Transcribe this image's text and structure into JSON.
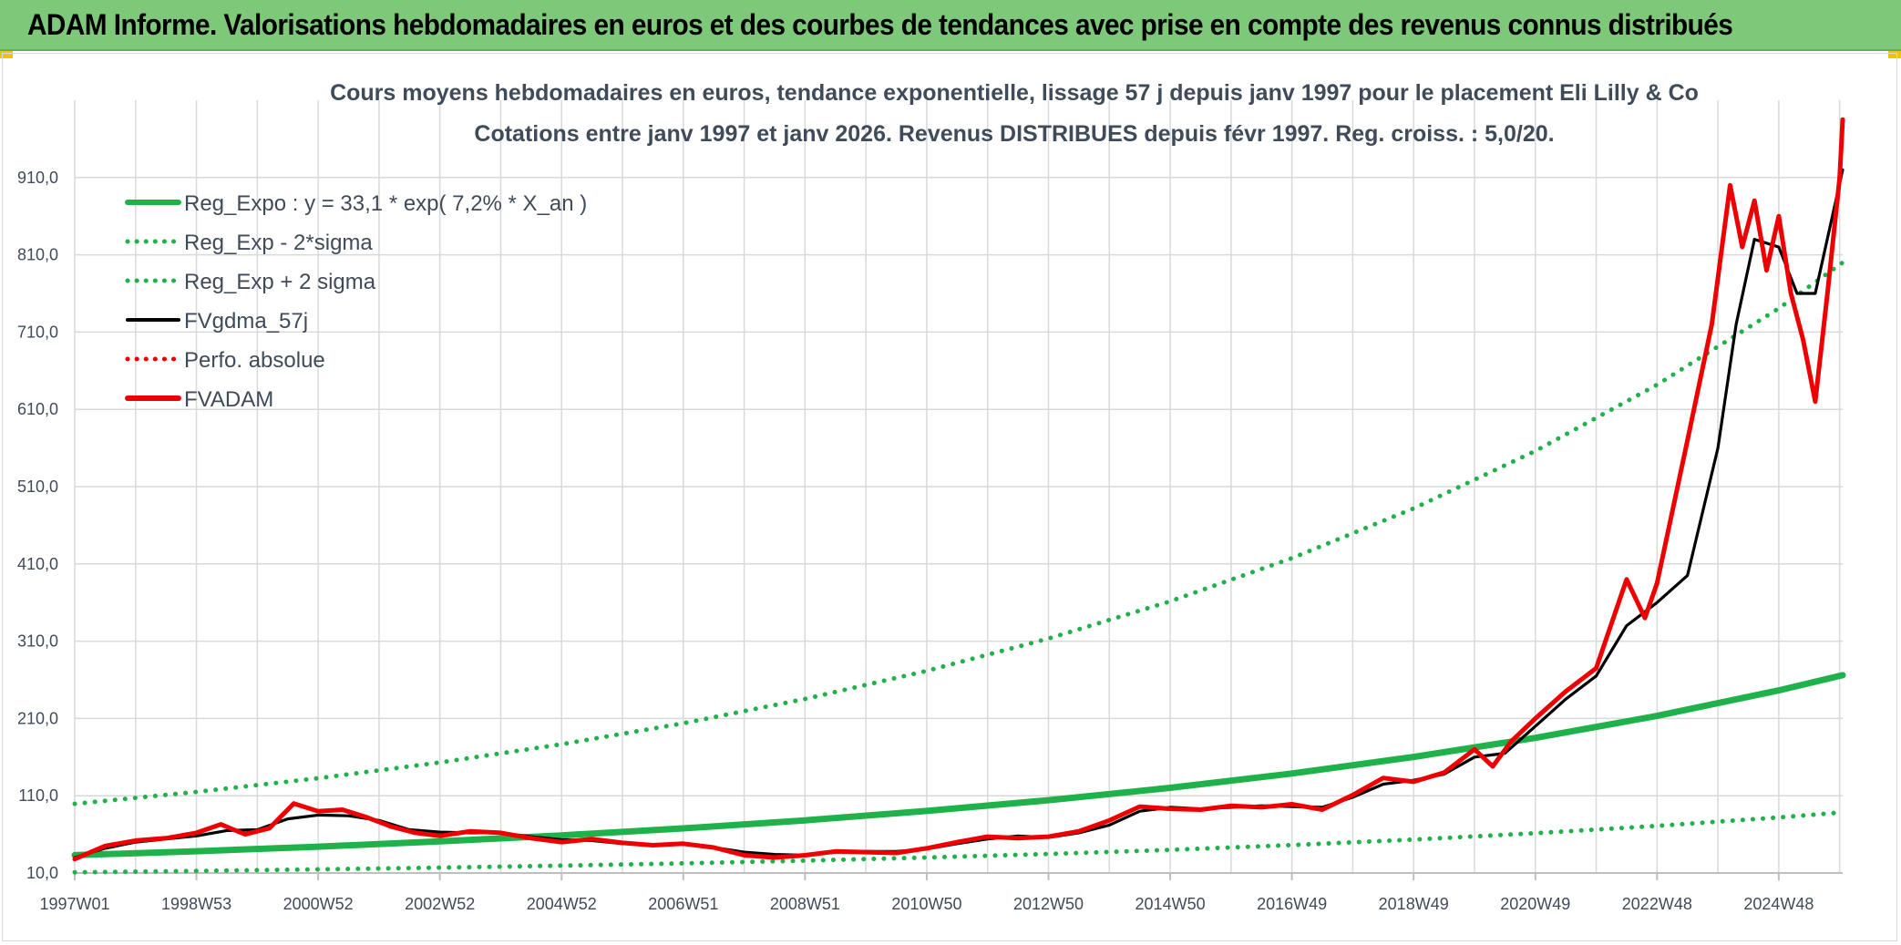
{
  "header": {
    "title": "ADAM Informe. Valorisations hebdomadaires en euros et des courbes de tendances avec prise en compte des revenus connus distribués"
  },
  "colors": {
    "banner": "#7ec87a",
    "regression": "#1fb14a",
    "moving_average": "#000000",
    "fvadam": "#ee0000",
    "perfo": "#ee0000",
    "grid": "#d9d9d9",
    "text": "#404b5a"
  },
  "chart_data": {
    "type": "line",
    "title": "Cours moyens hebdomadaires en euros, tendance exponentielle, lissage 57 j depuis janv 1997 pour le placement Eli Lilly & Co",
    "subtitle": "Cotations entre janv 1997 et janv 2026. Revenus DISTRIBUES depuis févr 1997. Reg. croiss. : 5,0/20.",
    "xlabel": "",
    "ylabel": "",
    "x_range_years": [
      1997.0,
      2026.05
    ],
    "ylim": [
      10,
      1010
    ],
    "y_ticks": [
      10,
      110,
      210,
      310,
      410,
      510,
      610,
      710,
      810,
      910
    ],
    "y_tick_labels": [
      "10,0",
      "110,0",
      "210,0",
      "310,0",
      "410,0",
      "510,0",
      "610,0",
      "710,0",
      "810,0",
      "910,0"
    ],
    "x_tick_labels": [
      "1997W01",
      "1998W53",
      "2000W52",
      "2002W52",
      "2004W52",
      "2006W51",
      "2008W51",
      "2010W50",
      "2012W50",
      "2014W50",
      "2016W49",
      "2018W49",
      "2020W49",
      "2022W48",
      "2024W48"
    ],
    "x_tick_years": [
      1997.0,
      1999.0,
      2001.0,
      2003.0,
      2005.0,
      2007.0,
      2009.0,
      2011.0,
      2013.0,
      2015.0,
      2017.0,
      2019.0,
      2021.0,
      2023.0,
      2025.0
    ],
    "legend_position": "top-left",
    "series": [
      {
        "name": "Reg_Expo : y = 33,1 * exp( 7,2% *  X_an )",
        "style": "solid-thick",
        "color": "#1fb14a",
        "x": [
          1997,
          1999,
          2001,
          2003,
          2005,
          2007,
          2009,
          2011,
          2013,
          2015,
          2017,
          2019,
          2021,
          2023,
          2025,
          2026.05
        ],
        "values": [
          33.1,
          38.2,
          44.1,
          50.9,
          58.7,
          67.8,
          78.2,
          90.3,
          104.2,
          120.3,
          138.8,
          160.2,
          184.9,
          213.3,
          246.3,
          266.0
        ]
      },
      {
        "name": "Reg_Exp - 2*sigma",
        "style": "dotted",
        "color": "#1fb14a",
        "x": [
          1997,
          1999,
          2001,
          2003,
          2005,
          2007,
          2009,
          2011,
          2013,
          2015,
          2017,
          2019,
          2021,
          2023,
          2025,
          2026.05
        ],
        "values": [
          11.0,
          12.7,
          14.7,
          16.9,
          19.5,
          22.5,
          26.0,
          30.0,
          34.7,
          40.0,
          46.2,
          53.3,
          61.5,
          71.0,
          81.9,
          88.5
        ]
      },
      {
        "name": "Reg_Exp + 2 sigma",
        "style": "dotted",
        "color": "#1fb14a",
        "x": [
          1997,
          1999,
          2001,
          2003,
          2005,
          2007,
          2009,
          2011,
          2013,
          2015,
          2017,
          2019,
          2021,
          2023,
          2025,
          2026.05
        ],
        "values": [
          99.5,
          114.9,
          132.6,
          153.0,
          176.6,
          203.8,
          235.2,
          271.5,
          313.4,
          361.7,
          417.4,
          481.8,
          556.1,
          641.8,
          740.7,
          800.0
        ]
      },
      {
        "name": "FVgdma_57j",
        "style": "solid",
        "color": "#000000",
        "x": [
          1997.0,
          1997.5,
          1998.0,
          1998.5,
          1999.0,
          1999.5,
          2000.0,
          2000.5,
          2001.0,
          2001.5,
          2002.0,
          2002.5,
          2003.0,
          2003.5,
          2004.0,
          2004.5,
          2005.0,
          2005.5,
          2006.0,
          2006.5,
          2007.0,
          2007.5,
          2008.0,
          2008.5,
          2009.0,
          2009.5,
          2010.0,
          2010.5,
          2011.0,
          2011.5,
          2012.0,
          2012.5,
          2013.0,
          2013.5,
          2014.0,
          2014.5,
          2015.0,
          2015.5,
          2016.0,
          2016.5,
          2017.0,
          2017.5,
          2018.0,
          2018.5,
          2019.0,
          2019.5,
          2020.0,
          2020.5,
          2021.0,
          2021.5,
          2022.0,
          2022.5,
          2023.0,
          2023.5,
          2024.0,
          2024.3,
          2024.6,
          2025.0,
          2025.3,
          2025.6,
          2026.05
        ],
        "values": [
          30,
          42,
          50,
          54,
          58,
          65,
          66,
          80,
          85,
          84,
          78,
          66,
          63,
          62,
          62,
          57,
          53,
          52,
          48,
          47,
          47,
          43,
          37,
          34,
          33,
          37,
          38,
          38,
          41,
          48,
          54,
          58,
          56,
          62,
          72,
          90,
          95,
          93,
          95,
          97,
          96,
          95,
          108,
          125,
          130,
          138,
          160,
          165,
          200,
          235,
          265,
          330,
          360,
          395,
          560,
          720,
          830,
          820,
          760,
          760,
          920
        ]
      },
      {
        "name": "Perfo. absolue",
        "style": "dotted",
        "color": "#ee0000",
        "x": [],
        "values": []
      },
      {
        "name": "FVADAM",
        "style": "solid-thick",
        "color": "#ee0000",
        "x": [
          1997.0,
          1997.5,
          1998.0,
          1998.5,
          1999.0,
          1999.4,
          1999.8,
          2000.2,
          2000.6,
          2001.0,
          2001.4,
          2001.8,
          2002.2,
          2002.6,
          2003.0,
          2003.5,
          2004.0,
          2004.5,
          2005.0,
          2005.5,
          2006.0,
          2006.5,
          2007.0,
          2007.5,
          2008.0,
          2008.5,
          2009.0,
          2009.5,
          2010.0,
          2010.5,
          2011.0,
          2011.5,
          2012.0,
          2012.5,
          2013.0,
          2013.5,
          2014.0,
          2014.5,
          2015.0,
          2015.5,
          2016.0,
          2016.5,
          2017.0,
          2017.5,
          2018.0,
          2018.5,
          2019.0,
          2019.5,
          2020.0,
          2020.3,
          2020.6,
          2021.0,
          2021.5,
          2022.0,
          2022.5,
          2022.8,
          2023.0,
          2023.5,
          2023.9,
          2024.2,
          2024.4,
          2024.6,
          2024.8,
          2025.0,
          2025.2,
          2025.4,
          2025.6,
          2025.8,
          2026.0,
          2026.05
        ],
        "values": [
          28,
          45,
          52,
          55,
          62,
          73,
          60,
          68,
          100,
          90,
          92,
          82,
          70,
          62,
          58,
          64,
          62,
          55,
          50,
          54,
          49,
          46,
          48,
          43,
          33,
          30,
          33,
          38,
          37,
          36,
          42,
          50,
          57,
          55,
          57,
          64,
          78,
          96,
          93,
          92,
          97,
          95,
          99,
          92,
          111,
          133,
          128,
          140,
          170,
          148,
          180,
          210,
          245,
          275,
          390,
          340,
          385,
          570,
          720,
          900,
          820,
          880,
          790,
          860,
          760,
          700,
          620,
          760,
          910,
          985
        ]
      }
    ]
  }
}
